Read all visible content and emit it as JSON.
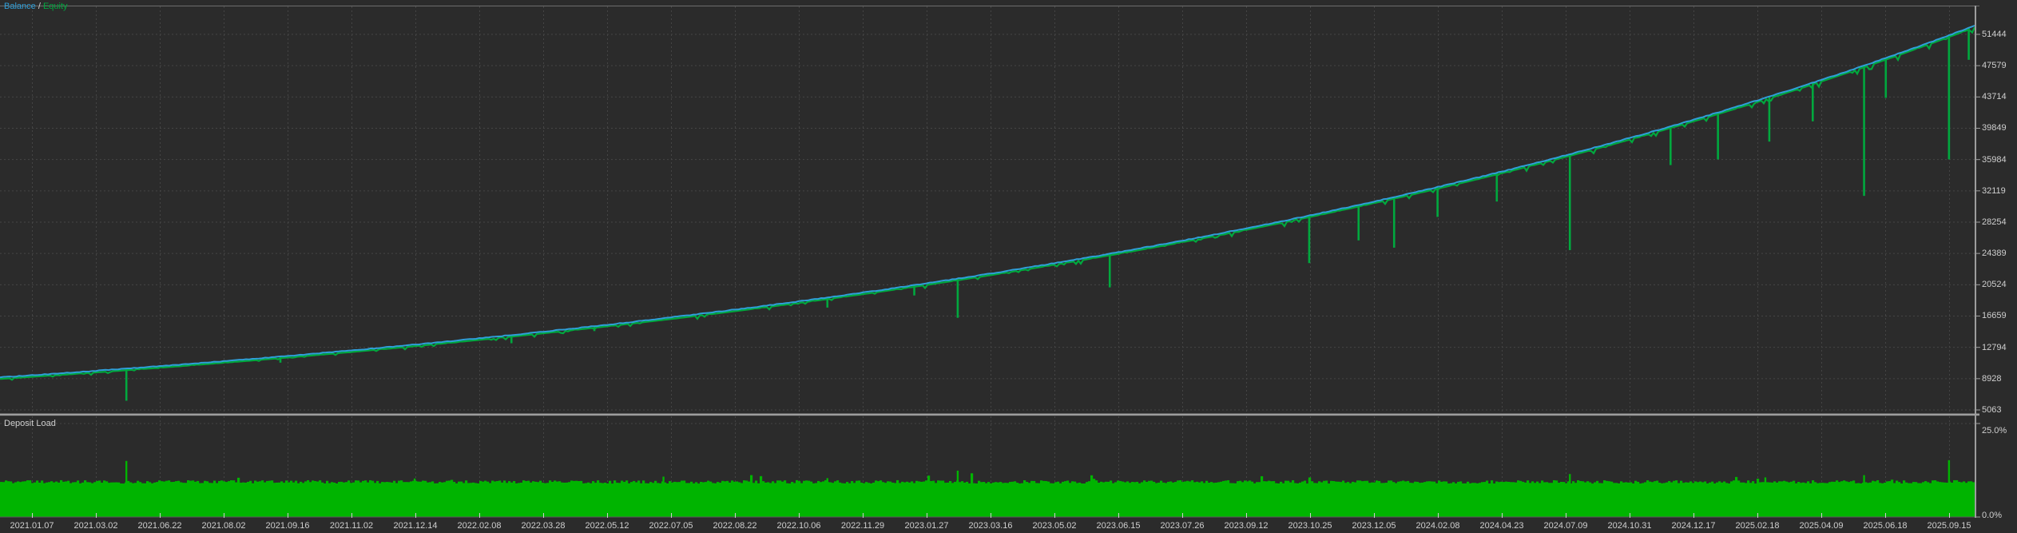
{
  "legend": {
    "balance": "Balance",
    "separator": " / ",
    "equity": "Equity"
  },
  "deposit_load": {
    "title": "Deposit Load"
  },
  "colors": {
    "background": "#2b2b2b",
    "grid": "#454545",
    "balance": "#2f9fd8",
    "equity": "#00a83e",
    "deposit_load_fill": "#00b400",
    "panel_border": "#9d9d9d",
    "axis_text": "#cfcfcf"
  },
  "chart_data": [
    {
      "type": "line",
      "title": "Balance / Equity",
      "legend_position": "top-left",
      "grid": "dashed",
      "interpolation": "exponential",
      "x_tick_labels": [
        "2021.01.07",
        "2021.03.02",
        "2021.06.22",
        "2021.08.02",
        "2021.09.16",
        "2021.11.02",
        "2021.12.14",
        "2022.02.08",
        "2022.03.28",
        "2022.05.12",
        "2022.07.05",
        "2022.08.22",
        "2022.10.06",
        "2022.11.29",
        "2023.01.27",
        "2023.03.16",
        "2023.05.02",
        "2023.06.15",
        "2023.07.26",
        "2023.09.12",
        "2023.10.25",
        "2023.12.05",
        "2024.02.08",
        "2024.04.23",
        "2024.07.09",
        "2024.10.31",
        "2024.12.17",
        "2025.02.18",
        "2025.04.09",
        "2025.06.18",
        "2025.09.15"
      ],
      "y_ticks": [
        51444,
        47579,
        43714,
        39849,
        35984,
        32119,
        28254,
        24389,
        20524,
        16659,
        12794,
        8928,
        5063
      ],
      "ylim": [
        4580,
        55000
      ],
      "series": [
        {
          "name": "Balance",
          "color": "#2f9fd8",
          "values": [
            9350,
            9896,
            10474,
            11086,
            11733,
            12418,
            13144,
            13911,
            14724,
            15584,
            16494,
            17457,
            18477,
            19556,
            20698,
            21907,
            23186,
            24540,
            25974,
            27491,
            29096,
            30795,
            32594,
            34497,
            36512,
            38644,
            40901,
            43290,
            45818,
            48494,
            51327
          ]
        },
        {
          "name": "Equity",
          "color": "#00a83e",
          "note": "tracks Balance with downward drawdown wicks",
          "drawdown_wicks": [
            {
              "pos": 0.064,
              "low": 6200
            },
            {
              "pos": 0.142,
              "low": 10900
            },
            {
              "pos": 0.259,
              "low": 13300
            },
            {
              "pos": 0.301,
              "low": 14800
            },
            {
              "pos": 0.419,
              "low": 17700
            },
            {
              "pos": 0.463,
              "low": 19200
            },
            {
              "pos": 0.485,
              "low": 16440
            },
            {
              "pos": 0.562,
              "low": 20200
            },
            {
              "pos": 0.663,
              "low": 23200
            },
            {
              "pos": 0.688,
              "low": 26000
            },
            {
              "pos": 0.706,
              "low": 25100
            },
            {
              "pos": 0.728,
              "low": 28900
            },
            {
              "pos": 0.758,
              "low": 30800
            },
            {
              "pos": 0.795,
              "low": 24800
            },
            {
              "pos": 0.846,
              "low": 35300
            },
            {
              "pos": 0.87,
              "low": 36000
            },
            {
              "pos": 0.896,
              "low": 38200
            },
            {
              "pos": 0.918,
              "low": 40700
            },
            {
              "pos": 0.944,
              "low": 31500
            },
            {
              "pos": 0.955,
              "low": 43600
            },
            {
              "pos": 0.987,
              "low": 36000
            },
            {
              "pos": 0.997,
              "low": 48300
            }
          ]
        }
      ]
    },
    {
      "type": "area",
      "title": "Deposit Load",
      "y_tick_labels": [
        "25.0%",
        "0.0%"
      ],
      "y_tick_values_pct": [
        25.0,
        0.0
      ],
      "base_load_pct": 9.4,
      "fill_color": "#00b400",
      "spikes": [
        {
          "pos": 0.064,
          "pct": 15.0
        },
        {
          "pos": 0.21,
          "pct": 10.3
        },
        {
          "pos": 0.336,
          "pct": 10.8
        },
        {
          "pos": 0.419,
          "pct": 10.4
        },
        {
          "pos": 0.485,
          "pct": 12.4
        },
        {
          "pos": 0.663,
          "pct": 10.2
        },
        {
          "pos": 0.795,
          "pct": 11.5
        },
        {
          "pos": 0.894,
          "pct": 10.6
        },
        {
          "pos": 0.944,
          "pct": 11.2
        },
        {
          "pos": 0.987,
          "pct": 15.2
        }
      ]
    }
  ]
}
